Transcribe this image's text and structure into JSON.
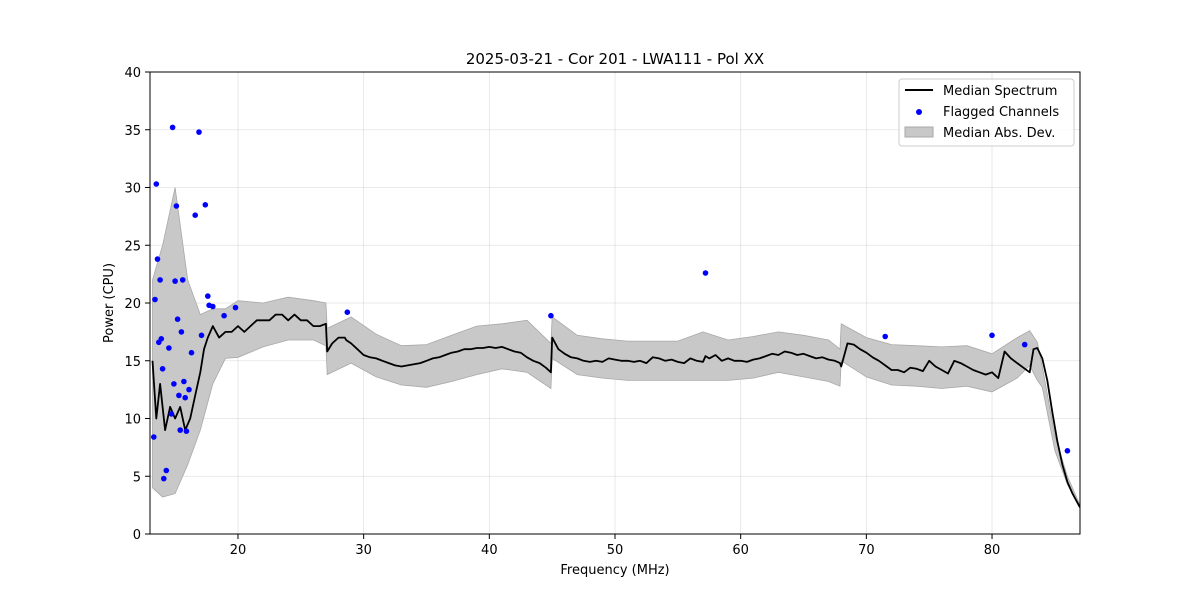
{
  "chart_data": {
    "type": "line",
    "title": "2025-03-21 - Cor 201 - LWA111 - Pol XX",
    "xlabel": "Frequency (MHz)",
    "ylabel": "Power (CPU)",
    "xlim": [
      13.0,
      87.0
    ],
    "ylim": [
      0,
      40
    ],
    "x_ticks": [
      20,
      30,
      40,
      50,
      60,
      70,
      80
    ],
    "y_ticks": [
      0,
      5,
      10,
      15,
      20,
      25,
      30,
      35,
      40
    ],
    "x_tick_labels": [
      "20",
      "30",
      "40",
      "50",
      "60",
      "70",
      "80"
    ],
    "y_tick_labels": [
      "0",
      "5",
      "10",
      "15",
      "20",
      "25",
      "30",
      "35",
      "40"
    ],
    "grid": true,
    "legend_position": "top-right",
    "legend": [
      "Median Spectrum",
      "Flagged Channels",
      "Median Abs. Dev."
    ],
    "colors": {
      "median": "#000000",
      "flagged": "#0000ff",
      "mad": "#c8c8c8",
      "mad_edge": "#a8a8a8"
    },
    "series": [
      {
        "name": "Median Spectrum",
        "x": [
          13.2,
          13.5,
          13.8,
          14.2,
          14.6,
          15.0,
          15.4,
          15.8,
          16.2,
          16.6,
          17.0,
          17.3,
          17.6,
          18.0,
          18.5,
          19.0,
          19.5,
          20.0,
          20.5,
          21.0,
          21.5,
          22.0,
          22.5,
          23.0,
          23.5,
          24.0,
          24.5,
          25.0,
          25.5,
          26.0,
          26.5,
          27.0,
          27.1,
          27.5,
          28.0,
          28.5,
          28.6,
          29.0,
          29.5,
          30.0,
          30.5,
          31.0,
          31.5,
          32.0,
          32.5,
          33.0,
          33.5,
          34.0,
          34.5,
          35.0,
          35.5,
          36.0,
          36.5,
          37.0,
          37.5,
          38.0,
          38.5,
          39.0,
          39.5,
          40.0,
          40.5,
          41.0,
          41.5,
          42.0,
          42.5,
          43.0,
          43.5,
          44.0,
          44.5,
          44.9,
          45.0,
          45.5,
          46.0,
          46.5,
          47.0,
          47.5,
          48.0,
          48.5,
          49.0,
          49.5,
          50.0,
          50.5,
          51.0,
          51.5,
          52.0,
          52.5,
          53.0,
          53.5,
          54.0,
          54.5,
          55.0,
          55.5,
          56.0,
          56.5,
          57.0,
          57.2,
          57.5,
          58.0,
          58.5,
          59.0,
          59.5,
          60.0,
          60.5,
          61.0,
          61.5,
          62.0,
          62.5,
          63.0,
          63.5,
          64.0,
          64.5,
          65.0,
          65.5,
          66.0,
          66.5,
          67.0,
          67.5,
          67.9,
          68.0,
          68.5,
          69.0,
          69.5,
          70.0,
          70.5,
          71.0,
          71.5,
          72.0,
          72.5,
          73.0,
          73.5,
          74.0,
          74.5,
          75.0,
          75.5,
          76.0,
          76.5,
          77.0,
          77.5,
          78.0,
          78.5,
          79.0,
          79.5,
          80.0,
          80.5,
          81.0,
          81.5,
          82.0,
          82.5,
          83.0,
          83.3,
          83.6,
          84.0,
          84.4,
          84.8,
          85.2,
          85.6,
          86.0,
          86.4,
          86.8,
          87.0
        ],
        "values": [
          15,
          10,
          13,
          9,
          11,
          10,
          11,
          9,
          10,
          12,
          14,
          16,
          17,
          18,
          17,
          17.5,
          17.5,
          18,
          17.5,
          18,
          18.5,
          18.5,
          18.5,
          19,
          19,
          18.5,
          19,
          18.5,
          18.5,
          18,
          18,
          18.2,
          15.8,
          16.5,
          17,
          17,
          16.8,
          16.5,
          16,
          15.5,
          15.3,
          15.2,
          15,
          14.8,
          14.6,
          14.5,
          14.6,
          14.7,
          14.8,
          15,
          15.2,
          15.3,
          15.5,
          15.7,
          15.8,
          16,
          16,
          16.1,
          16.1,
          16.2,
          16.1,
          16.2,
          16,
          15.8,
          15.7,
          15.3,
          15,
          14.8,
          14.4,
          14.0,
          17.0,
          16,
          15.6,
          15.3,
          15.2,
          15,
          14.9,
          15,
          14.9,
          15.2,
          15.1,
          15,
          15,
          14.9,
          15,
          14.8,
          15.3,
          15.2,
          15,
          15.1,
          14.9,
          14.8,
          15.2,
          15,
          14.9,
          15.4,
          15.2,
          15.5,
          15,
          15.2,
          15,
          15,
          14.9,
          15.1,
          15.2,
          15.4,
          15.6,
          15.5,
          15.8,
          15.7,
          15.5,
          15.6,
          15.4,
          15.2,
          15.3,
          15.1,
          15,
          14.8,
          14.5,
          16.5,
          16.4,
          16,
          15.7,
          15.3,
          15,
          14.6,
          14.2,
          14.2,
          14,
          14.4,
          14.3,
          14.1,
          15,
          14.5,
          14.2,
          13.9,
          15,
          14.8,
          14.5,
          14.2,
          14,
          13.8,
          14,
          13.5,
          15.8,
          15.2,
          14.8,
          14.4,
          14,
          16,
          16.1,
          15.2,
          13.3,
          10.5,
          8,
          6,
          4.5,
          3.5,
          2.7,
          2.3
        ]
      },
      {
        "name": "Median Abs. Dev.",
        "x": [
          13.2,
          14.0,
          15.0,
          16.0,
          17.0,
          18.0,
          19.0,
          20.0,
          22.0,
          24.0,
          26.0,
          27.0,
          27.1,
          29.0,
          31.0,
          33.0,
          35.0,
          37.0,
          39.0,
          41.0,
          43.0,
          44.9,
          45.0,
          47.0,
          49.0,
          51.0,
          53.0,
          55.0,
          57.0,
          59.0,
          61.0,
          63.0,
          65.0,
          67.0,
          67.9,
          68.0,
          70.0,
          72.0,
          74.0,
          76.0,
          78.0,
          80.0,
          82.0,
          83.0,
          83.6,
          84.0,
          85.0,
          86.0,
          87.0
        ],
        "lower": [
          4,
          3.2,
          3.5,
          6,
          9,
          13,
          15.2,
          15.3,
          16.2,
          16.8,
          16.8,
          16.3,
          13.8,
          14.8,
          13.6,
          12.9,
          12.7,
          13.2,
          13.8,
          14.3,
          14.0,
          12.6,
          15.2,
          13.8,
          13.5,
          13.3,
          13.3,
          13.3,
          13.3,
          13.3,
          13.5,
          14.0,
          13.6,
          13.2,
          12.8,
          15.0,
          13.6,
          12.9,
          12.8,
          12.6,
          12.8,
          12.3,
          13.5,
          14.6,
          13.3,
          12.7,
          7.2,
          4.3,
          2.3
        ],
        "upper": [
          22,
          25,
          30,
          22,
          19,
          19.5,
          19.5,
          20.2,
          20.0,
          20.5,
          20.2,
          20.0,
          17.8,
          18.8,
          17.3,
          16.3,
          16.4,
          17.2,
          18.0,
          18.2,
          18.5,
          16.5,
          18.8,
          17.2,
          16.9,
          16.7,
          16.7,
          16.7,
          17.5,
          16.8,
          17.1,
          17.5,
          17.2,
          16.8,
          16.0,
          18.2,
          17.0,
          16.4,
          16.3,
          16.2,
          16.3,
          15.6,
          17.0,
          17.6,
          16.6,
          14.5,
          8.5,
          5.0,
          2.5
        ]
      }
    ],
    "flagged_channels": {
      "name": "Flagged Channels",
      "x": [
        13.3,
        13.4,
        13.5,
        13.6,
        13.7,
        13.8,
        13.9,
        14.0,
        14.1,
        14.3,
        14.5,
        14.7,
        14.8,
        14.9,
        15.0,
        15.1,
        15.2,
        15.3,
        15.4,
        15.5,
        15.6,
        15.7,
        15.8,
        15.9,
        16.1,
        16.3,
        16.6,
        16.9,
        17.1,
        17.4,
        17.6,
        17.7,
        18.0,
        18.9,
        19.8,
        28.7,
        44.9,
        57.2,
        71.5,
        80.0,
        82.6,
        86.0
      ],
      "y": [
        8.4,
        20.3,
        30.3,
        23.8,
        16.6,
        22.0,
        16.9,
        14.3,
        4.8,
        5.5,
        16.1,
        10.4,
        35.2,
        13.0,
        21.9,
        28.4,
        18.6,
        12.0,
        9.0,
        17.5,
        22.0,
        13.2,
        11.8,
        8.9,
        12.5,
        15.7,
        27.6,
        34.8,
        17.2,
        28.5,
        20.6,
        19.8,
        19.7,
        18.9,
        19.6,
        19.2,
        18.9,
        22.6,
        17.1,
        17.2,
        16.4,
        7.2
      ]
    }
  }
}
